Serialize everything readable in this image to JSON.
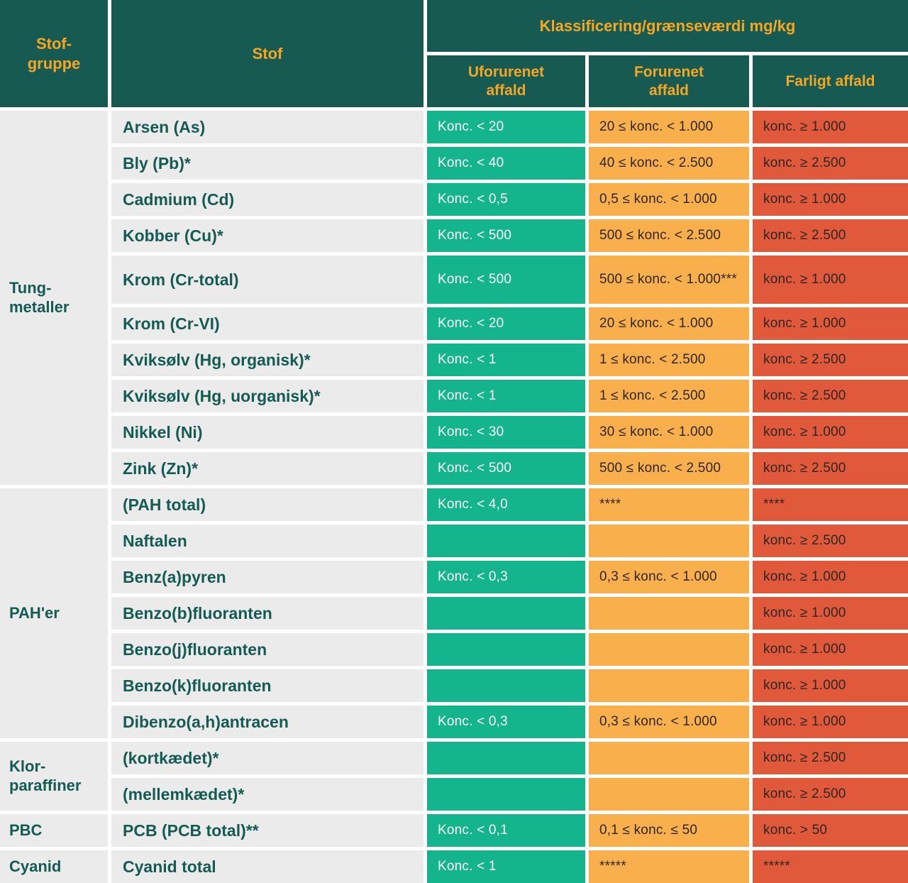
{
  "table": {
    "header": {
      "stof_gruppe": "Stof-gruppe",
      "stof": "Stof",
      "klassificering": "Klassificering/grænseværdi mg/kg",
      "sub_columns": [
        "Uforurenet affald",
        "Forurenet affald",
        "Farligt affald"
      ]
    },
    "groups": [
      {
        "label": "Tung-metaller",
        "row_count": 10
      },
      {
        "label": "PAH'er",
        "row_count": 7
      },
      {
        "label": "Klor-paraffiner",
        "row_count": 2
      },
      {
        "label": "PBC",
        "row_count": 1
      },
      {
        "label": "Cyanid",
        "row_count": 1
      }
    ],
    "rows": [
      {
        "stof": "Arsen (As)",
        "uforurenet": "Konc. < 20",
        "forurenet": "20 ≤ konc. < 1.000",
        "farligt": "konc. ≥ 1.000"
      },
      {
        "stof": "Bly (Pb)*",
        "uforurenet": "Konc. < 40",
        "forurenet": "40 ≤ konc. < 2.500",
        "farligt": "konc. ≥ 2.500"
      },
      {
        "stof": "Cadmium (Cd)",
        "uforurenet": "Konc. < 0,5",
        "forurenet": "0,5 ≤ konc. < 1.000",
        "farligt": "konc. ≥ 1.000"
      },
      {
        "stof": "Kobber (Cu)*",
        "uforurenet": "Konc. < 500",
        "forurenet": "500 ≤ konc. < 2.500",
        "farligt": "konc. ≥ 2.500"
      },
      {
        "stof": "Krom (Cr-total)",
        "uforurenet": "Konc. < 500",
        "forurenet": "500 ≤ konc. < 1.000***",
        "farligt": "konc. ≥ 1.000"
      },
      {
        "stof": "Krom (Cr-VI)",
        "uforurenet": "Konc. < 20",
        "forurenet": "20 ≤ konc. < 1.000",
        "farligt": "konc. ≥ 1.000"
      },
      {
        "stof": "Kviksølv (Hg, organisk)*",
        "uforurenet": "Konc. < 1",
        "forurenet": "1 ≤ konc. < 2.500",
        "farligt": "konc. ≥ 2.500"
      },
      {
        "stof": "Kviksølv (Hg, uorganisk)*",
        "uforurenet": "Konc. < 1",
        "forurenet": "1 ≤ konc. < 2.500",
        "farligt": "konc. ≥ 2.500"
      },
      {
        "stof": "Nikkel (Ni)",
        "uforurenet": "Konc. < 30",
        "forurenet": "30 ≤ konc. < 1.000",
        "farligt": "konc. ≥ 1.000"
      },
      {
        "stof": "Zink (Zn)*",
        "uforurenet": "Konc. < 500",
        "forurenet": "500 ≤ konc. < 2.500",
        "farligt": "konc. ≥ 2.500"
      },
      {
        "stof": "(PAH total)",
        "uforurenet": "Konc. < 4,0",
        "forurenet": "****",
        "farligt": "****"
      },
      {
        "stof": "Naftalen",
        "uforurenet": "",
        "forurenet": "",
        "farligt": "konc. ≥ 2.500"
      },
      {
        "stof": "Benz(a)pyren",
        "uforurenet": "Konc. < 0,3",
        "forurenet": "0,3 ≤ konc. < 1.000",
        "farligt": "konc. ≥ 1.000"
      },
      {
        "stof": "Benzo(b)fluoranten",
        "uforurenet": "",
        "forurenet": "",
        "farligt": "konc. ≥ 1.000"
      },
      {
        "stof": "Benzo(j)fluoranten",
        "uforurenet": "",
        "forurenet": "",
        "farligt": "konc. ≥ 1.000"
      },
      {
        "stof": "Benzo(k)fluoranten",
        "uforurenet": "",
        "forurenet": "",
        "farligt": "konc. ≥ 1.000"
      },
      {
        "stof": "Dibenzo(a,h)antracen",
        "uforurenet": "Konc. < 0,3",
        "forurenet": "0,3 ≤ konc. < 1.000",
        "farligt": "konc. ≥ 1.000"
      },
      {
        "stof": "(kortkædet)*",
        "uforurenet": "",
        "forurenet": "",
        "farligt": "konc. ≥ 2.500"
      },
      {
        "stof": "(mellemkædet)*",
        "uforurenet": "",
        "forurenet": "",
        "farligt": "konc. ≥ 2.500"
      },
      {
        "stof": "PCB (PCB total)**",
        "uforurenet": "Konc. < 0,1",
        "forurenet": "0,1 ≤ konc. ≤ 50",
        "farligt": "konc. > 50"
      },
      {
        "stof": "Cyanid total",
        "uforurenet": "Konc. < 1",
        "forurenet": "*****",
        "farligt": "*****"
      }
    ],
    "colors": {
      "header_bg": "#175A52",
      "header_text": "#F5A623",
      "row_bg": "#EBEBEB",
      "row_text": "#145B53",
      "uforurenet_bg": "#14B48C",
      "uforurenet_text": "#FFFFFF",
      "forurenet_bg": "#F9B04C",
      "farligt_bg": "#E0593B",
      "value_dark_text": "#2E2620"
    }
  }
}
